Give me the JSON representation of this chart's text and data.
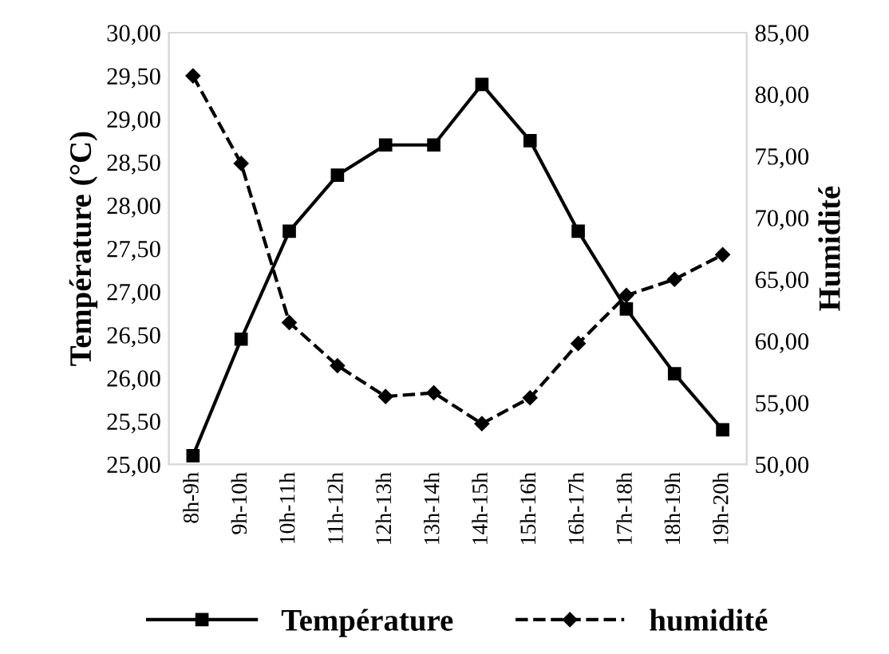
{
  "chart_data": {
    "type": "line",
    "ylabel": "Température (°C)",
    "y2label": "Humidité",
    "categories": [
      "8h-9h",
      "9h-10h",
      "10h-11h",
      "11h-12h",
      "12h-13h",
      "13h-14h",
      "14h-15h",
      "15h-16h",
      "16h-17h",
      "17h-18h",
      "18h-19h",
      "19h-20h"
    ],
    "ylim": [
      25,
      30
    ],
    "yticks": [
      {
        "value": 25,
        "label": "25,00"
      },
      {
        "value": 25.5,
        "label": "25,50"
      },
      {
        "value": 26,
        "label": "26,00"
      },
      {
        "value": 26.5,
        "label": "26,50"
      },
      {
        "value": 27,
        "label": "27,00"
      },
      {
        "value": 27.5,
        "label": "27,50"
      },
      {
        "value": 28,
        "label": "28,00"
      },
      {
        "value": 28.5,
        "label": "28,50"
      },
      {
        "value": 29,
        "label": "29,00"
      },
      {
        "value": 29.5,
        "label": "29,50"
      },
      {
        "value": 30,
        "label": "30,00"
      }
    ],
    "y2lim": [
      50,
      85
    ],
    "y2ticks": [
      {
        "value": 50,
        "label": "50,00"
      },
      {
        "value": 55,
        "label": "55,00"
      },
      {
        "value": 60,
        "label": "60,00"
      },
      {
        "value": 65,
        "label": "65,00"
      },
      {
        "value": 70,
        "label": "70,00"
      },
      {
        "value": 75,
        "label": "75,00"
      },
      {
        "value": 80,
        "label": "80,00"
      },
      {
        "value": 85,
        "label": "85,00"
      }
    ],
    "grid": false,
    "legend": "bottom",
    "series": [
      {
        "name": "Température",
        "color": "#000000",
        "marker": "square",
        "line_style": "solid",
        "values": [
          25.1,
          26.45,
          27.7,
          28.35,
          28.7,
          28.7,
          29.4,
          28.75,
          27.7,
          26.8,
          26.05,
          25.4
        ]
      },
      {
        "name": "humidité",
        "color": "#000000",
        "marker": "diamond",
        "line_style": "dashed",
        "axis": "y2",
        "values": [
          81.5,
          74.4,
          61.5,
          58.0,
          55.5,
          55.8,
          53.3,
          55.4,
          59.8,
          63.7,
          65.0,
          67.0
        ]
      }
    ]
  }
}
